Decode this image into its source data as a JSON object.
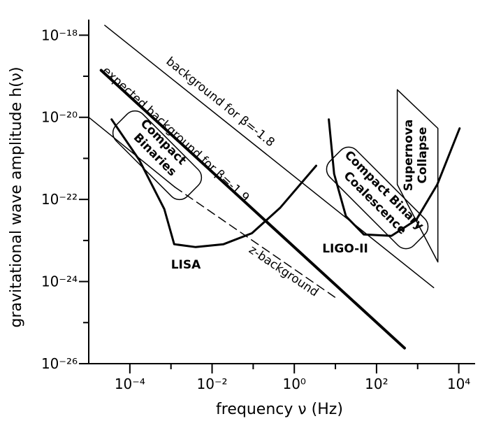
{
  "chart_data": {
    "type": "line",
    "xlabel": "frequency ν (Hz)",
    "ylabel": "gravitational wave amplitude  h(ν)",
    "xscale": "log",
    "yscale": "log",
    "xlim": [
      1e-05,
      25000.0
    ],
    "ylim": [
      1e-26,
      2.4e-18
    ],
    "xticks": [
      {
        "value": 0.0001,
        "label": "10⁻⁴"
      },
      {
        "value": 0.01,
        "label": "10⁻²"
      },
      {
        "value": 1,
        "label": "10⁰"
      },
      {
        "value": 100,
        "label": "10²"
      },
      {
        "value": 10000,
        "label": "10⁴"
      }
    ],
    "xminor_ticks": [
      0.001,
      0.1,
      10,
      1000
    ],
    "yticks": [
      {
        "value": 1e-26,
        "label": "10⁻²⁶"
      },
      {
        "value": 1e-24,
        "label": "10⁻²⁴"
      },
      {
        "value": 1e-22,
        "label": "10⁻²²"
      },
      {
        "value": 1e-20,
        "label": "10⁻²⁰"
      },
      {
        "value": 1e-18,
        "label": "10⁻¹⁸"
      }
    ],
    "yminor_ticks": [
      1e-25,
      1e-23,
      1e-21,
      1e-19
    ],
    "series": [
      {
        "color": "#000000",
        "line_width": 1.5,
        "dash": false,
        "x": [
          2.45e-05,
          2460
        ],
        "values": [
          1.74e-18,
          7.1e-25
        ]
      },
      {
        "color": "#000000",
        "line_width": 4,
        "dash": false,
        "x": [
          2e-05,
          480
        ],
        "values": [
          1.4e-19,
          2.4e-26
        ]
      },
      {
        "color": "#000000",
        "line_width": 1.5,
        "dash": false,
        "x": [
          1e-05,
          0.00124
        ],
        "values": [
          1e-20,
          2e-22
        ]
      },
      {
        "color": "#000000",
        "line_width": 1.5,
        "dash": true,
        "x": [
          0.00124,
          11.5
        ],
        "values": [
          2e-22,
          3.7e-25
        ]
      },
      {
        "color": "#000000",
        "line_width": 3,
        "dash": false,
        "x": [
          3.6e-05,
          0.00017,
          0.00069,
          0.0012,
          0.004,
          0.019,
          0.093,
          0.45,
          3.4
        ],
        "values": [
          8.9e-21,
          9.1e-22,
          5.8e-23,
          8.1e-24,
          6.9e-24,
          8.1e-24,
          1.5e-23,
          6.2e-23,
          6.6e-22
        ]
      },
      {
        "color": "#000000",
        "line_width": 3,
        "dash": false,
        "x": [
          6.9,
          9.3,
          18,
          49,
          230,
          930,
          3000,
          10500
        ],
        "values": [
          8.9e-21,
          4.2e-22,
          3.9e-23,
          1.4e-23,
          1.3e-23,
          3.2e-23,
          2.3e-22,
          5.4e-21
        ]
      },
      {
        "color": "#000000",
        "line_width": 1.5,
        "dash": false,
        "closed": true,
        "x": [
          320,
          3100,
          3100,
          320
        ],
        "values": [
          4.7e-20,
          5.4e-21,
          3e-24,
          2.3e-22
        ]
      }
    ],
    "annotations": [
      "background for β=-1.8",
      "expected background for β=-1.9",
      "z-background",
      "LISA",
      "LIGO-II",
      "Compact",
      "Binaries",
      "Compact Binary",
      "Coalescence",
      "Supernova",
      "Collapse"
    ]
  }
}
